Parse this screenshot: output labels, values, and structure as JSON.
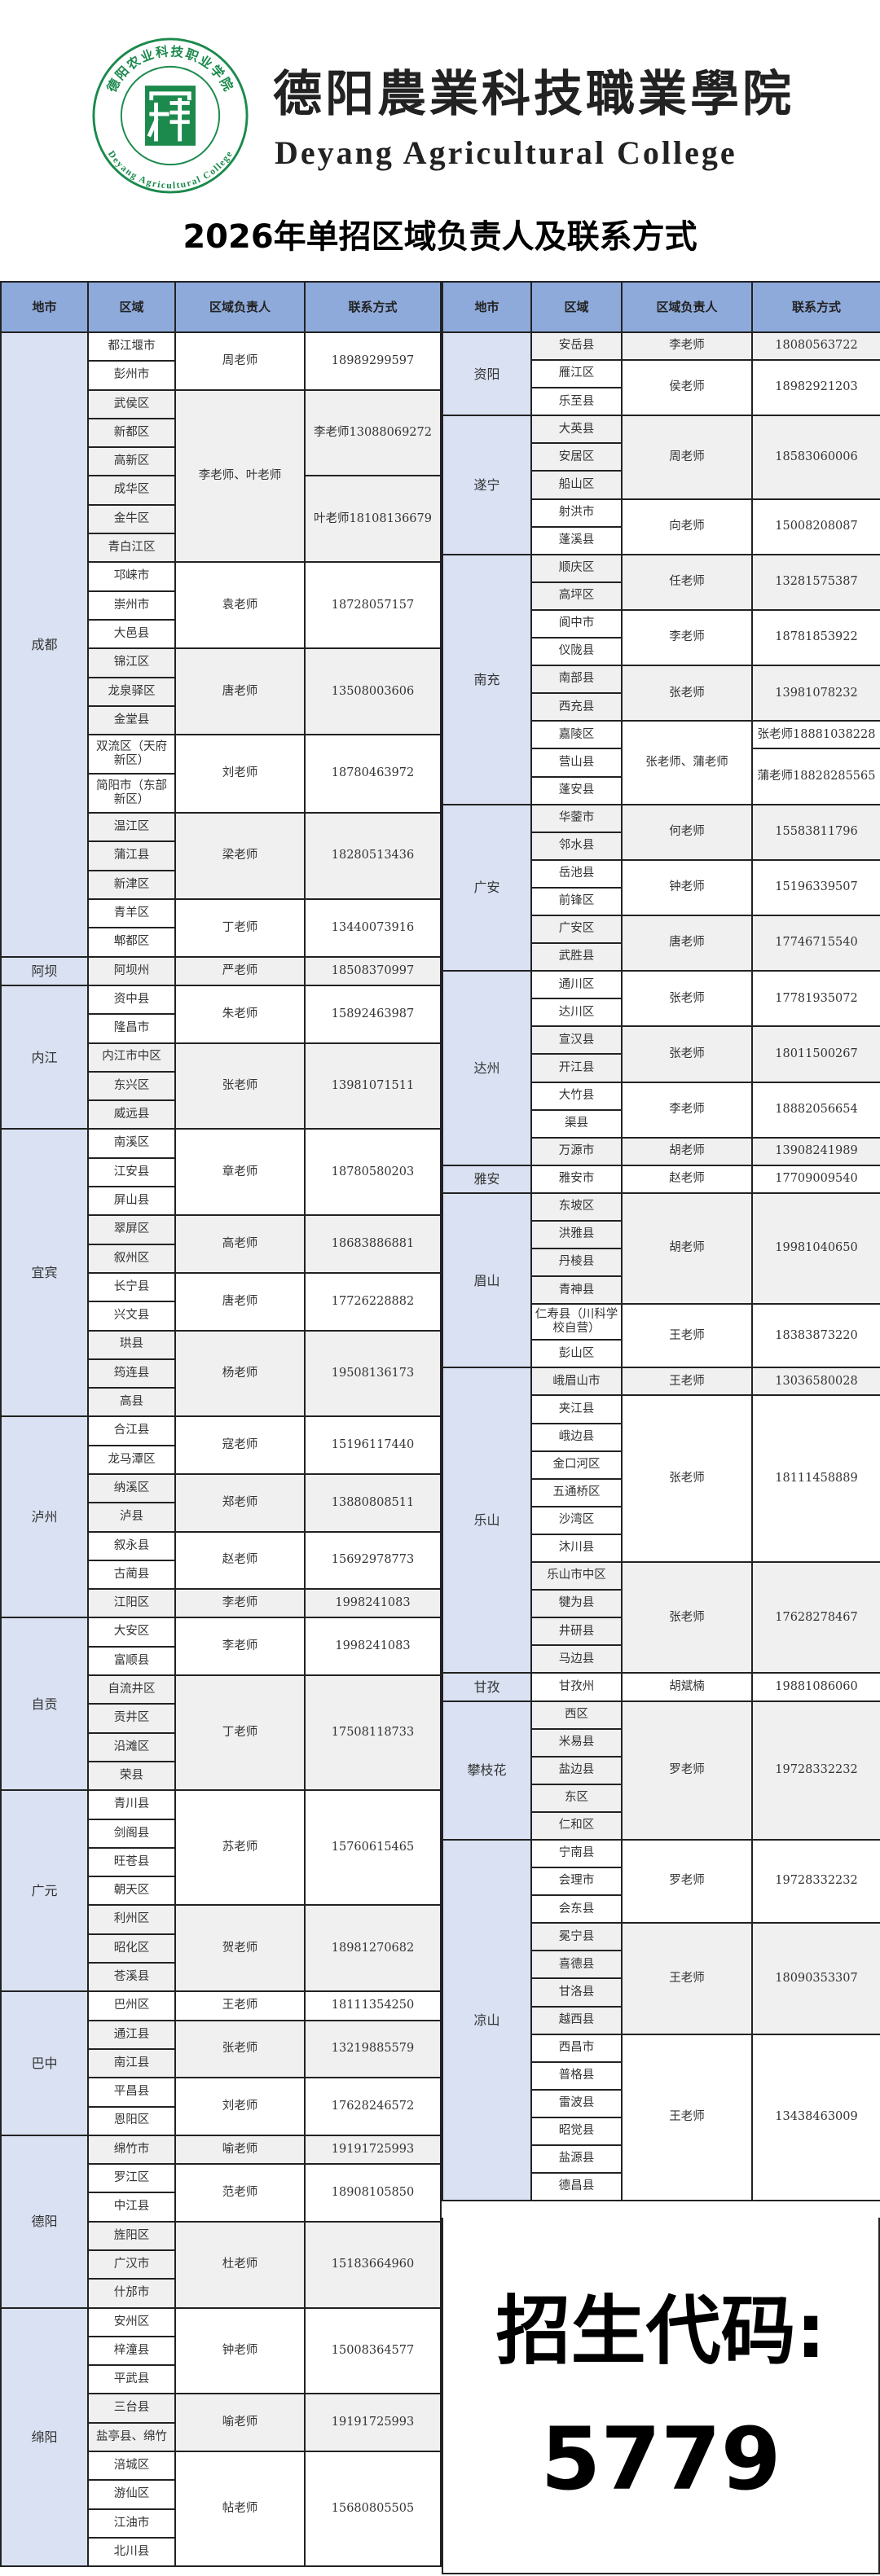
{
  "logo": {
    "ring_cn": "德阳农业科技职业学院",
    "ring_en": "Deyang Agricultural College",
    "name_cn": "德阳農業科技職業學院",
    "name_en": "Deyang Agricultural College",
    "icon": "college-seal-logo"
  },
  "title": "2026年单招区域负责人及联系方式",
  "headers": [
    "地市",
    "区域",
    "区域负责人",
    "联系方式"
  ],
  "colors": {
    "header": "#8eaadb",
    "city_column": "#d9e1f2",
    "shade": "#f0f0f0",
    "logo_green": "#1b8a4c"
  },
  "left": [
    {
      "city": "成都",
      "groups": [
        {
          "person": "周老师",
          "phone": "18989299597",
          "districts": [
            "都江堰市",
            "彭州市"
          ]
        },
        {
          "person": "李老师、叶老师",
          "districts": [
            "武侯区",
            "新都区",
            "高新区",
            "成华区",
            "金牛区",
            "青白江区"
          ],
          "phones": [
            {
              "text": "李老师13088069272",
              "districts": [
                "武侯区",
                "新都区",
                "高新区"
              ]
            },
            {
              "text": "叶老师18108136679",
              "districts": [
                "成华区",
                "金牛区",
                "青白江区"
              ]
            }
          ]
        },
        {
          "person": "袁老师",
          "phone": "18728057157",
          "districts": [
            "邛崃市",
            "崇州市",
            "大邑县"
          ]
        },
        {
          "person": "唐老师",
          "phone": "13508003606",
          "districts": [
            "锦江区",
            "龙泉驿区",
            "金堂县"
          ]
        },
        {
          "person": "刘老师",
          "phone": "18780463972",
          "districts": [
            "双流区（天府新区）",
            "简阳市（东部新区）"
          ]
        },
        {
          "person": "梁老师",
          "phone": "18280513436",
          "districts": [
            "温江区",
            "蒲江县",
            "新津区"
          ]
        },
        {
          "person": "丁老师",
          "phone": "13440073916",
          "districts": [
            "青羊区",
            "郫都区"
          ]
        }
      ]
    },
    {
      "city": "阿坝",
      "groups": [
        {
          "person": "严老师",
          "phone": "18508370997",
          "districts": [
            "阿坝州"
          ]
        }
      ]
    },
    {
      "city": "内江",
      "groups": [
        {
          "person": "朱老师",
          "phone": "15892463987",
          "districts": [
            "资中县",
            "隆昌市"
          ]
        },
        {
          "person": "张老师",
          "phone": "13981071511",
          "districts": [
            "内江市中区",
            "东兴区",
            "威远县"
          ]
        }
      ]
    },
    {
      "city": "宜宾",
      "groups": [
        {
          "person": "章老师",
          "phone": "18780580203",
          "districts": [
            "南溪区",
            "江安县",
            "屏山县"
          ]
        },
        {
          "person": "高老师",
          "phone": "18683886881",
          "districts": [
            "翠屏区",
            "叙州区"
          ]
        },
        {
          "person": "唐老师",
          "phone": "17726228882",
          "districts": [
            "长宁县",
            "兴文县"
          ]
        },
        {
          "person": "杨老师",
          "phone": "19508136173",
          "districts": [
            "珙县",
            "筠连县",
            "高县"
          ]
        }
      ]
    },
    {
      "city": "泸州",
      "groups": [
        {
          "person": "寇老师",
          "phone": "15196117440",
          "districts": [
            "合江县",
            "龙马潭区"
          ]
        },
        {
          "person": "郑老师",
          "phone": "13880808511",
          "districts": [
            "纳溪区",
            "泸县"
          ]
        },
        {
          "person": "赵老师",
          "phone": "15692978773",
          "districts": [
            "叙永县",
            "古蔺县"
          ]
        },
        {
          "person": "李老师",
          "phone": "1998241083",
          "districts": [
            "江阳区"
          ]
        }
      ]
    },
    {
      "city": "自贡",
      "groups": [
        {
          "person": "李老师",
          "phone": "1998241083",
          "districts": [
            "大安区",
            "富顺县"
          ]
        },
        {
          "person": "丁老师",
          "phone": "17508118733",
          "districts": [
            "自流井区",
            "贡井区",
            "沿滩区",
            "荣县"
          ]
        }
      ]
    },
    {
      "city": "广元",
      "groups": [
        {
          "person": "苏老师",
          "phone": "15760615465",
          "districts": [
            "青川县",
            "剑阁县",
            "旺苍县",
            "朝天区"
          ]
        },
        {
          "person": "贺老师",
          "phone": "18981270682",
          "districts": [
            "利州区",
            "昭化区",
            "苍溪县"
          ]
        }
      ]
    },
    {
      "city": "巴中",
      "groups": [
        {
          "person": "王老师",
          "phone": "18111354250",
          "districts": [
            "巴州区"
          ]
        },
        {
          "person": "张老师",
          "phone": "13219885579",
          "districts": [
            "通江县",
            "南江县"
          ]
        },
        {
          "person": "刘老师",
          "phone": "17628246572",
          "districts": [
            "平昌县",
            "恩阳区"
          ]
        }
      ]
    },
    {
      "city": "德阳",
      "groups": [
        {
          "person": "喻老师",
          "phone": "19191725993",
          "districts": [
            "绵竹市"
          ]
        },
        {
          "person": "范老师",
          "phone": "18908105850",
          "districts": [
            "罗江区",
            "中江县"
          ]
        },
        {
          "person": "杜老师",
          "phone": "15183664960",
          "districts": [
            "旌阳区",
            "广汉市",
            "什邡市"
          ]
        }
      ]
    },
    {
      "city": "绵阳",
      "groups": [
        {
          "person": "钟老师",
          "phone": "15008364577",
          "districts": [
            "安州区",
            "梓潼县",
            "平武县"
          ]
        },
        {
          "person": "喻老师",
          "phone": "19191725993",
          "districts": [
            "三台县",
            "盐亭县、绵竹"
          ]
        },
        {
          "person": "帖老师",
          "phone": "15680805505",
          "districts": [
            "涪城区",
            "游仙区",
            "江油市",
            "北川县"
          ]
        }
      ]
    }
  ],
  "right": [
    {
      "city": "资阳",
      "groups": [
        {
          "person": "李老师",
          "phone": "18080563722",
          "districts": [
            "安岳县"
          ]
        },
        {
          "person": "侯老师",
          "phone": "18982921203",
          "districts": [
            "雁江区",
            "乐至县"
          ]
        }
      ]
    },
    {
      "city": "遂宁",
      "groups": [
        {
          "person": "周老师",
          "phone": "18583060006",
          "districts": [
            "大英县",
            "安居区",
            "船山区"
          ]
        },
        {
          "person": "向老师",
          "phone": "15008208087",
          "districts": [
            "射洪市",
            "蓬溪县"
          ]
        }
      ]
    },
    {
      "city": "南充",
      "groups": [
        {
          "person": "任老师",
          "phone": "13281575387",
          "districts": [
            "顺庆区",
            "高坪区"
          ]
        },
        {
          "person": "李老师",
          "phone": "18781853922",
          "districts": [
            "阆中市",
            "仪陇县"
          ]
        },
        {
          "person": "张老师",
          "phone": "13981078232",
          "districts": [
            "南部县",
            "西充县"
          ]
        },
        {
          "person": "张老师、蒲老师",
          "districts": [
            "嘉陵区",
            "营山县",
            "蓬安县"
          ],
          "phones": [
            {
              "text": "张老师18881038228",
              "districts": [
                "嘉陵区"
              ]
            },
            {
              "text": "蒲老师18828285565",
              "districts": [
                "营山县",
                "蓬安县"
              ]
            }
          ]
        }
      ]
    },
    {
      "city": "广安",
      "groups": [
        {
          "person": "何老师",
          "phone": "15583811796",
          "districts": [
            "华蓥市",
            "邻水县"
          ]
        },
        {
          "person": "钟老师",
          "phone": "15196339507",
          "districts": [
            "岳池县",
            "前锋区"
          ]
        },
        {
          "person": "唐老师",
          "phone": "17746715540",
          "districts": [
            "广安区",
            "武胜县"
          ]
        }
      ]
    },
    {
      "city": "达州",
      "groups": [
        {
          "person": "张老师",
          "phone": "17781935072",
          "districts": [
            "通川区",
            "达川区"
          ]
        },
        {
          "person": "张老师",
          "phone": "18011500267",
          "districts": [
            "宣汉县",
            "开江县"
          ]
        },
        {
          "person": "李老师",
          "phone": "18882056654",
          "districts": [
            "大竹县",
            "渠县"
          ]
        },
        {
          "person": "胡老师",
          "phone": "13908241989",
          "districts": [
            "万源市"
          ]
        }
      ]
    },
    {
      "city": "雅安",
      "groups": [
        {
          "person": "赵老师",
          "phone": "17709009540",
          "districts": [
            "雅安市"
          ]
        }
      ]
    },
    {
      "city": "眉山",
      "groups": [
        {
          "person": "胡老师",
          "phone": "19981040650",
          "districts": [
            "东坡区",
            "洪雅县",
            "丹棱县",
            "青神县"
          ]
        },
        {
          "person": "王老师",
          "phone": "18383873220",
          "districts": [
            "仁寿县（川科学校自营）",
            "彭山区"
          ]
        }
      ]
    },
    {
      "city": "乐山",
      "groups": [
        {
          "person": "王老师",
          "phone": "13036580028",
          "districts": [
            "峨眉山市"
          ]
        },
        {
          "person": "张老师",
          "phone": "18111458889",
          "districts": [
            "夹江县",
            "峨边县",
            "金口河区",
            "五通桥区",
            "沙湾区",
            "沐川县"
          ]
        },
        {
          "person": "张老师",
          "phone": "17628278467",
          "districts": [
            "乐山市中区",
            "犍为县",
            "井研县",
            "马边县"
          ]
        }
      ]
    },
    {
      "city": "甘孜",
      "groups": [
        {
          "person": "胡斌楠",
          "phone": "19881086060",
          "districts": [
            "甘孜州"
          ]
        }
      ]
    },
    {
      "city": "攀枝花",
      "groups": [
        {
          "person": "罗老师",
          "phone": "19728332232",
          "districts": [
            "西区",
            "米易县",
            "盐边县",
            "东区",
            "仁和区"
          ]
        }
      ]
    },
    {
      "city": "凉山",
      "groups": [
        {
          "person": "罗老师",
          "phone": "19728332232",
          "districts": [
            "宁南县",
            "会理市",
            "会东县"
          ]
        },
        {
          "person": "王老师",
          "phone": "18090353307",
          "districts": [
            "冕宁县",
            "喜德县",
            "甘洛县",
            "越西县"
          ]
        },
        {
          "person": "王老师",
          "phone": "13438463009",
          "districts": [
            "西昌市",
            "普格县",
            "雷波县",
            "昭觉县",
            "盐源县",
            "德昌县"
          ]
        }
      ]
    }
  ],
  "code": {
    "label": "招生代码:",
    "value": "5779"
  }
}
